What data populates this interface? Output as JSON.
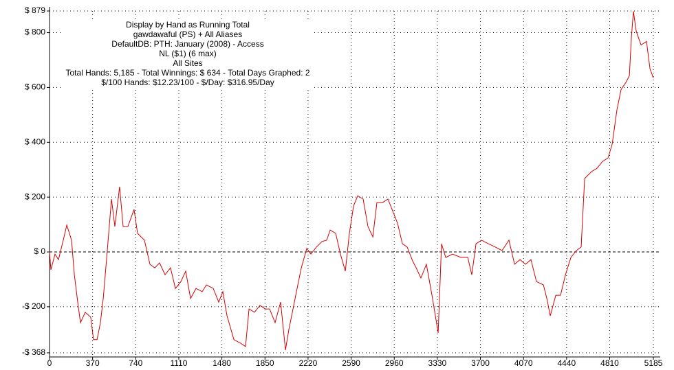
{
  "chart_data": {
    "type": "line",
    "title": "Display by Hand as Running Total",
    "subtitle_lines": [
      "gawdawaful (PS) + All Aliases",
      "DefaultDB: PTH: January (2008) - Access",
      "NL ($1) (6 max)",
      "All Sites",
      "Total Hands: 5,185 - Total Winnings: $ 634 - Total Days Graphed: 2",
      "$/100 Hands: $12.23/100 - $/Day: $316.95/Day"
    ],
    "x": [
      0,
      12,
      47,
      77,
      118,
      148,
      189,
      213,
      242,
      266,
      307,
      354,
      378,
      408,
      437,
      461,
      496,
      532,
      561,
      602,
      632,
      673,
      726,
      756,
      815,
      862,
      904,
      945,
      992,
      1039,
      1081,
      1128,
      1169,
      1211,
      1258,
      1311,
      1347,
      1406,
      1453,
      1488,
      1524,
      1583,
      1642,
      1683,
      1713,
      1760,
      1807,
      1854,
      1890,
      1937,
      1984,
      2026,
      2055,
      2085,
      2126,
      2162,
      2209,
      2244,
      2292,
      2339,
      2380,
      2410,
      2457,
      2498,
      2540,
      2575,
      2611,
      2646,
      2693,
      2734,
      2776,
      2811,
      2858,
      2906,
      2953,
      2988,
      3030,
      3071,
      3118,
      3148,
      3189,
      3236,
      3284,
      3337,
      3366,
      3402,
      3461,
      3532,
      3591,
      3626,
      3662,
      3709,
      3768,
      3827,
      3886,
      3945,
      3993,
      4040,
      4087,
      4134,
      4181,
      4241,
      4270,
      4300,
      4347,
      4388,
      4430,
      4477,
      4524,
      4565,
      4595,
      4654,
      4701,
      4748,
      4796,
      4831,
      4872,
      4908,
      4949,
      4979,
      4996,
      5014,
      5038,
      5079,
      5126,
      5156,
      5185
    ],
    "series": [
      {
        "color": "#d40000",
        "values": [
          0,
          -65,
          -8,
          -28,
          43,
          98,
          43,
          -83,
          -183,
          -258,
          -220,
          -238,
          -320,
          -320,
          -258,
          -170,
          5,
          193,
          93,
          238,
          93,
          93,
          155,
          68,
          43,
          -45,
          -58,
          -40,
          -83,
          -58,
          -133,
          -108,
          -70,
          -170,
          -133,
          -145,
          -120,
          -133,
          -183,
          -145,
          -233,
          -320,
          -333,
          -345,
          -208,
          -220,
          -195,
          -208,
          -208,
          -258,
          -183,
          -358,
          -283,
          -220,
          -133,
          -58,
          13,
          -8,
          18,
          38,
          43,
          80,
          68,
          -8,
          -70,
          68,
          168,
          205,
          193,
          93,
          55,
          180,
          180,
          193,
          143,
          105,
          30,
          18,
          -33,
          -58,
          -95,
          -45,
          -158,
          -295,
          30,
          -20,
          -8,
          -20,
          -20,
          -83,
          30,
          43,
          30,
          18,
          5,
          43,
          -45,
          -28,
          -45,
          -28,
          -108,
          -120,
          -170,
          -233,
          -158,
          -158,
          -83,
          -20,
          5,
          18,
          268,
          293,
          305,
          330,
          343,
          393,
          518,
          593,
          618,
          643,
          780,
          878,
          805,
          755,
          768,
          668,
          634
        ]
      }
    ],
    "xlim": [
      0,
      5185
    ],
    "xticks": [
      0,
      370,
      740,
      1110,
      1480,
      1850,
      2220,
      2590,
      2960,
      3330,
      3700,
      4070,
      4440,
      4810,
      5185
    ],
    "ylim": [
      -368,
      879
    ],
    "yticks": [
      {
        "value": -368,
        "label": "-$ 368"
      },
      {
        "value": -200,
        "label": "-$ 200"
      },
      {
        "value": 0,
        "label": "$ 0"
      },
      {
        "value": 200,
        "label": "$ 200"
      },
      {
        "value": 400,
        "label": "$ 400"
      },
      {
        "value": 600,
        "label": "$ 600"
      },
      {
        "value": 800,
        "label": "$ 800"
      },
      {
        "value": 879,
        "label": "$ 879"
      }
    ],
    "grid": true
  }
}
